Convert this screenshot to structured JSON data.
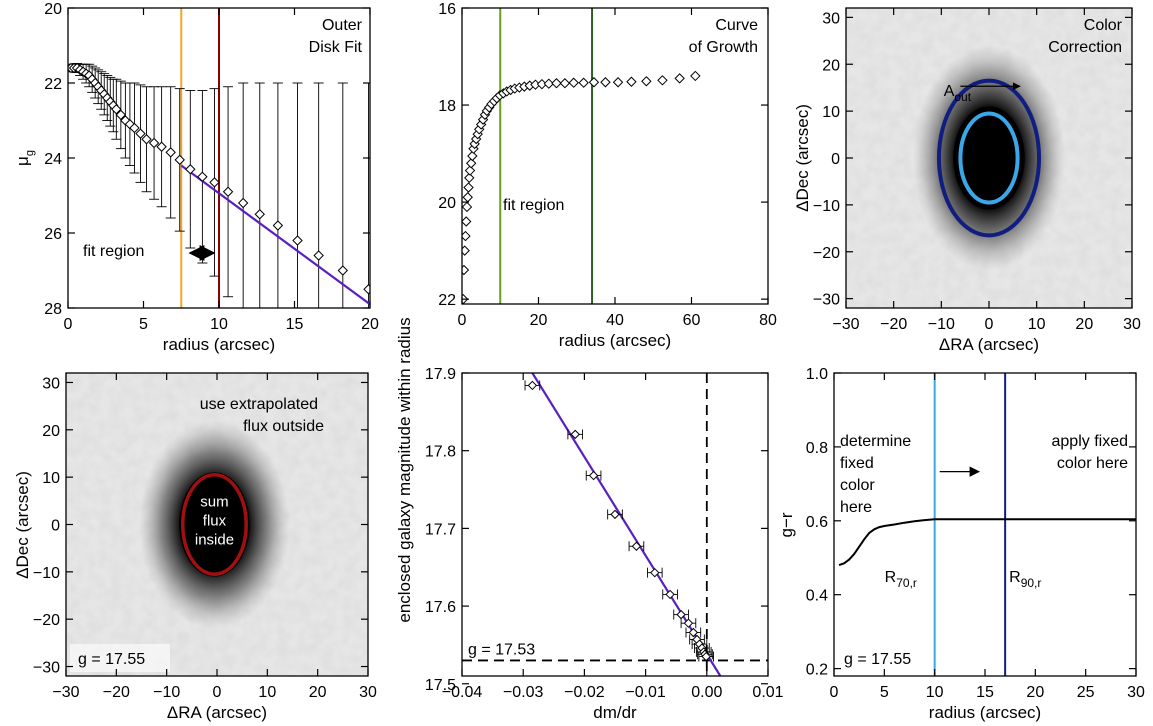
{
  "figure": {
    "shared_ylabel": "enclosed galaxy magnitude within radius"
  },
  "colors": {
    "orange": "#f5a623",
    "darkred": "#8b0000",
    "purple": "#5a1fc0",
    "olive": "#6b9e1e",
    "darkgreen": "#2e5e1e",
    "navy": "#101e80",
    "lightblue": "#3aa8e8",
    "ellred": "#a01010"
  },
  "chart_data": [
    {
      "id": "p1",
      "type": "line",
      "annotation": [
        "Outer",
        "Disk Fit"
      ],
      "xlabel": "radius (arcsec)",
      "ylabel": "μg",
      "xlim": [
        0,
        20
      ],
      "ylim": [
        28,
        20
      ],
      "y_inverted": true,
      "xticks": [
        "0",
        "5",
        "10",
        "15",
        "20"
      ],
      "yticks": [
        "20",
        "22",
        "24",
        "26",
        "28"
      ],
      "vlines": [
        {
          "x": 7.5,
          "color": "orange"
        },
        {
          "x": 10.0,
          "color": "darkred"
        }
      ],
      "fit_line": {
        "x": [
          7.5,
          20
        ],
        "y": [
          24.2,
          27.9
        ],
        "color": "purple"
      },
      "fit_label": "fit region",
      "points": {
        "x": [
          0.2,
          0.4,
          0.6,
          0.8,
          1.0,
          1.2,
          1.4,
          1.6,
          1.8,
          2.0,
          2.2,
          2.4,
          2.6,
          2.8,
          3.0,
          3.2,
          3.5,
          3.8,
          4.1,
          4.4,
          4.8,
          5.2,
          5.7,
          6.2,
          6.8,
          7.4,
          8.1,
          8.9,
          9.7,
          10.6,
          11.6,
          12.7,
          13.9,
          15.2,
          16.6,
          18.2,
          19.9
        ],
        "y": [
          21.6,
          21.6,
          21.6,
          21.65,
          21.7,
          21.75,
          21.8,
          21.9,
          22.0,
          22.1,
          22.2,
          22.3,
          22.4,
          22.5,
          22.6,
          22.7,
          22.85,
          23.0,
          23.1,
          23.2,
          23.35,
          23.5,
          23.6,
          23.7,
          23.85,
          24.05,
          24.3,
          24.5,
          24.65,
          24.9,
          25.2,
          25.5,
          25.8,
          26.2,
          26.6,
          27.0,
          27.5
        ],
        "err": [
          0.1,
          0.1,
          0.12,
          0.15,
          0.2,
          0.25,
          0.3,
          0.35,
          0.4,
          0.45,
          0.5,
          0.55,
          0.6,
          0.65,
          0.7,
          0.8,
          0.9,
          1.0,
          1.1,
          1.2,
          1.3,
          1.4,
          1.5,
          1.6,
          1.75,
          1.9,
          2.1,
          2.3,
          2.5,
          2.8,
          3.2,
          3.5,
          3.8,
          4.2,
          4.6,
          5.0,
          5.5
        ]
      }
    },
    {
      "id": "p2",
      "type": "scatter",
      "annotation": [
        "Curve",
        "of Growth"
      ],
      "xlabel": "radius (arcsec)",
      "ylabel": "",
      "xlim": [
        0,
        80
      ],
      "ylim": [
        22.1,
        16
      ],
      "y_inverted": true,
      "xticks": [
        "0",
        "20",
        "40",
        "60",
        "80"
      ],
      "yticks": [
        "16",
        "18",
        "20",
        "22"
      ],
      "vlines": [
        {
          "x": 10.0,
          "color": "olive"
        },
        {
          "x": 34.0,
          "color": "darkgreen"
        }
      ],
      "fit_label": "fit region",
      "points": {
        "x": [
          0.3,
          0.5,
          0.7,
          0.9,
          1.1,
          1.3,
          1.5,
          1.7,
          1.9,
          2.1,
          2.4,
          2.7,
          3.0,
          3.3,
          3.7,
          4.1,
          4.5,
          5.0,
          5.5,
          6.0,
          6.5,
          7.1,
          7.7,
          8.4,
          9.1,
          9.9,
          10.8,
          11.7,
          12.7,
          13.8,
          15.0,
          16.3,
          17.7,
          19.2,
          20.9,
          22.7,
          24.7,
          26.9,
          29.2,
          31.8,
          34.5,
          37.5,
          40.8,
          44.3,
          48.2,
          52.4,
          56.9,
          61.0
        ],
        "y": [
          22.0,
          21.4,
          21.0,
          20.7,
          20.4,
          20.1,
          19.9,
          19.7,
          19.5,
          19.35,
          19.2,
          19.05,
          18.9,
          18.8,
          18.7,
          18.6,
          18.5,
          18.4,
          18.3,
          18.2,
          18.12,
          18.05,
          17.98,
          17.92,
          17.86,
          17.8,
          17.76,
          17.72,
          17.69,
          17.66,
          17.64,
          17.62,
          17.6,
          17.58,
          17.57,
          17.56,
          17.55,
          17.55,
          17.54,
          17.54,
          17.53,
          17.53,
          17.53,
          17.52,
          17.51,
          17.49,
          17.45,
          17.4
        ]
      }
    },
    {
      "id": "p3",
      "type": "heatmap",
      "annotation": [
        "Color",
        "Correction"
      ],
      "xlabel": "ΔRA (arcsec)",
      "ylabel": "ΔDec (arcsec)",
      "xlim": [
        -30,
        30
      ],
      "ylim": [
        -32,
        32
      ],
      "xticks": [
        "−30",
        "−20",
        "−10",
        "0",
        "10",
        "20",
        "30"
      ],
      "yticks": [
        "−30",
        "−20",
        "−10",
        "0",
        "10",
        "20",
        "30"
      ],
      "ellipses": [
        {
          "cx": 0,
          "cy": 0,
          "rx": 10.5,
          "ry": 16.5,
          "color": "navy"
        },
        {
          "cx": 0,
          "cy": 0,
          "rx": 6.0,
          "ry": 9.5,
          "color": "lightblue"
        }
      ],
      "label_main": "A",
      "label_sub": "out",
      "arrow": {
        "from": [
          -6,
          15.3
        ],
        "to": [
          6.5,
          15.3
        ]
      }
    },
    {
      "id": "p4",
      "type": "heatmap",
      "annotation": [
        "use extrapolated",
        "flux outside"
      ],
      "inner_text": [
        "sum",
        "flux",
        "inside"
      ],
      "footer": "g = 17.55",
      "xlabel": "ΔRA (arcsec)",
      "ylabel": "ΔDec (arcsec)",
      "xlim": [
        -30,
        30
      ],
      "ylim": [
        -32,
        32
      ],
      "xticks": [
        "−30",
        "−20",
        "−10",
        "0",
        "10",
        "20",
        "30"
      ],
      "yticks": [
        "−30",
        "−20",
        "−10",
        "0",
        "10",
        "20",
        "30"
      ],
      "ellipses": [
        {
          "cx": -0.5,
          "cy": 0,
          "rx": 6.3,
          "ry": 10.5,
          "color": "ellred"
        }
      ]
    },
    {
      "id": "p5",
      "type": "scatter",
      "footer": "g = 17.53",
      "xlabel": "dm/dr",
      "ylabel": "",
      "xlim": [
        -0.04,
        0.01
      ],
      "ylim": [
        17.51,
        17.9
      ],
      "xticks": [
        "−0.04",
        "−0.03",
        "−0.02",
        "−0.01",
        "0.00",
        "0.01"
      ],
      "yticks": [
        "17.5",
        "17.6",
        "17.7",
        "17.8",
        "17.9"
      ],
      "fit_line": {
        "x": [
          -0.0285,
          0.003
        ],
        "y": [
          17.9,
          17.5
        ],
        "color": "purple"
      },
      "dashed_v": 0.0,
      "dashed_h": 17.53,
      "points": {
        "x": [
          -0.0285,
          -0.0215,
          -0.0185,
          -0.015,
          -0.0115,
          -0.0085,
          -0.006,
          -0.0042,
          -0.003,
          -0.0022,
          -0.0016,
          -0.0012,
          -0.0008,
          -0.0005,
          -0.0003,
          -0.0001
        ],
        "y": [
          17.884,
          17.821,
          17.768,
          17.718,
          17.677,
          17.643,
          17.615,
          17.589,
          17.578,
          17.566,
          17.557,
          17.551,
          17.546,
          17.541,
          17.538,
          17.535
        ],
        "xerr": [
          0.0012,
          0.0012,
          0.0012,
          0.0012,
          0.0012,
          0.0012,
          0.0012,
          0.0012,
          0.0012,
          0.0012,
          0.0012,
          0.0012,
          0.0012,
          0.0012,
          0.0012,
          0.0012
        ]
      }
    },
    {
      "id": "p6",
      "type": "line",
      "footer": "g = 17.55",
      "text_left": [
        "determine",
        "fixed",
        "color",
        "here"
      ],
      "text_right": [
        "apply fixed",
        "color here"
      ],
      "xlabel": "radius (arcsec)",
      "ylabel": "g−r",
      "xlim": [
        0,
        30
      ],
      "ylim": [
        0.18,
        1.0
      ],
      "xticks": [
        "0",
        "5",
        "10",
        "15",
        "20",
        "25",
        "30"
      ],
      "yticks": [
        "0.2",
        "0.4",
        "0.6",
        "0.8",
        "1.0"
      ],
      "vlines": [
        {
          "x": 10.0,
          "color": "lightblue",
          "label": "R",
          "sub": "70,r"
        },
        {
          "x": 17.0,
          "color": "navy",
          "label": "R",
          "sub": "90,r"
        }
      ],
      "arrow": {
        "from": [
          10.5,
          0.733
        ],
        "to": [
          14.4,
          0.733
        ]
      },
      "curve": {
        "x": [
          0.5,
          1.0,
          1.5,
          2.0,
          2.5,
          3.0,
          3.5,
          4.0,
          4.5,
          5.0,
          6.0,
          7.0,
          8.0,
          9.0,
          10.0,
          12.0,
          15.0,
          20.0,
          25.0,
          30.0
        ],
        "y": [
          0.48,
          0.485,
          0.495,
          0.51,
          0.53,
          0.55,
          0.567,
          0.577,
          0.583,
          0.586,
          0.59,
          0.595,
          0.599,
          0.602,
          0.604,
          0.604,
          0.604,
          0.604,
          0.604,
          0.604
        ]
      }
    }
  ]
}
